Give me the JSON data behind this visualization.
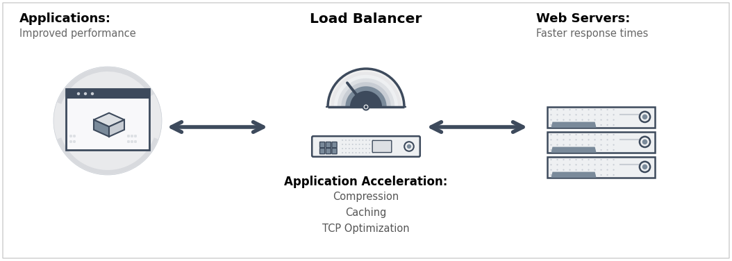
{
  "bg_color": "#ffffff",
  "border_color": "#cccccc",
  "dark_color": "#3d4a5c",
  "mid_color": "#7a8a9a",
  "light_color": "#c8cdd4",
  "lighter_color": "#dde0e4",
  "very_light": "#eef0f2",
  "circle_bg": "#d8dade",
  "app_title": "Applications:",
  "app_subtitle": "Improved performance",
  "lb_title": "Load Balancer",
  "ws_title": "Web Servers:",
  "ws_subtitle": "Faster response times",
  "accel_title": "Application Acceleration:",
  "accel_items": [
    "Compression",
    "Caching",
    "TCP Optimization"
  ],
  "title_fontsize": 13,
  "subtitle_fontsize": 10.5,
  "accel_title_fontsize": 12,
  "accel_item_fontsize": 10.5,
  "fig_w": 10.54,
  "fig_h": 3.76
}
